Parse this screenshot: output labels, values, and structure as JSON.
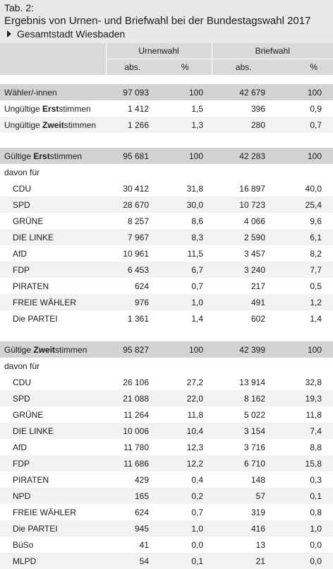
{
  "tab_number": "Tab. 2:",
  "title": "Ergebnis von Urnen- und Briefwahl bei der Bundestagswahl 2017",
  "subtitle": "Gesamtstadt Wiesbaden",
  "header": {
    "urnenwahl": "Urnenwahl",
    "briefwahl": "Briefwahl",
    "abs": "abs.",
    "pct": "%"
  },
  "summary": [
    {
      "pre": "Wähler/-innen",
      "bold": "",
      "post": "",
      "u_abs": "97 093",
      "u_pct": "100",
      "b_abs": "42 679",
      "b_pct": "100"
    },
    {
      "pre": "Ungültige ",
      "bold": "Erst",
      "post": "stimmen",
      "u_abs": "1 412",
      "u_pct": "1,5",
      "b_abs": "396",
      "b_pct": "0,9"
    },
    {
      "pre": "Ungültige ",
      "bold": "Zweit",
      "post": "stimmen",
      "u_abs": "1 266",
      "u_pct": "1,3",
      "b_abs": "280",
      "b_pct": "0,7"
    }
  ],
  "erst": {
    "head": {
      "pre": "Gültige ",
      "bold": "Erst",
      "post": "stimmen",
      "u_abs": "95 681",
      "u_pct": "100",
      "b_abs": "42 283",
      "b_pct": "100"
    },
    "davon": "davon für",
    "rows": [
      {
        "party": "CDU",
        "u_abs": "30 412",
        "u_pct": "31,8",
        "b_abs": "16 897",
        "b_pct": "40,0"
      },
      {
        "party": "SPD",
        "u_abs": "28 670",
        "u_pct": "30,0",
        "b_abs": "10 723",
        "b_pct": "25,4"
      },
      {
        "party": "GRÜNE",
        "u_abs": "8 257",
        "u_pct": "8,6",
        "b_abs": "4 066",
        "b_pct": "9,6"
      },
      {
        "party": "DIE LINKE",
        "u_abs": "7 967",
        "u_pct": "8,3",
        "b_abs": "2 590",
        "b_pct": "6,1"
      },
      {
        "party": "AfD",
        "u_abs": "10 961",
        "u_pct": "11,5",
        "b_abs": "3 457",
        "b_pct": "8,2"
      },
      {
        "party": "FDP",
        "u_abs": "6 453",
        "u_pct": "6,7",
        "b_abs": "3 240",
        "b_pct": "7,7"
      },
      {
        "party": "PIRATEN",
        "u_abs": "624",
        "u_pct": "0,7",
        "b_abs": "217",
        "b_pct": "0,5"
      },
      {
        "party": "FREIE WÄHLER",
        "u_abs": "976",
        "u_pct": "1,0",
        "b_abs": "491",
        "b_pct": "1,2"
      },
      {
        "party": "Die PARTEI",
        "u_abs": "1 361",
        "u_pct": "1,4",
        "b_abs": "602",
        "b_pct": "1,4"
      }
    ]
  },
  "zweit": {
    "head": {
      "pre": "Gültige ",
      "bold": "Zweit",
      "post": "stimmen",
      "u_abs": "95 827",
      "u_pct": "100",
      "b_abs": "42 399",
      "b_pct": "100"
    },
    "davon": "davon für",
    "rows": [
      {
        "party": "CDU",
        "u_abs": "26 106",
        "u_pct": "27,2",
        "b_abs": "13 914",
        "b_pct": "32,8"
      },
      {
        "party": "SPD",
        "u_abs": "21 088",
        "u_pct": "22,0",
        "b_abs": "8 162",
        "b_pct": "19,3"
      },
      {
        "party": "GRÜNE",
        "u_abs": "11 264",
        "u_pct": "11,8",
        "b_abs": "5 022",
        "b_pct": "11,8"
      },
      {
        "party": "DIE LINKE",
        "u_abs": "10 006",
        "u_pct": "10,4",
        "b_abs": "3 154",
        "b_pct": "7,4"
      },
      {
        "party": "AfD",
        "u_abs": "11 780",
        "u_pct": "12,3",
        "b_abs": "3 716",
        "b_pct": "8,8"
      },
      {
        "party": "FDP",
        "u_abs": "11 686",
        "u_pct": "12,2",
        "b_abs": "6 710",
        "b_pct": "15,8"
      },
      {
        "party": "PIRATEN",
        "u_abs": "429",
        "u_pct": "0,4",
        "b_abs": "148",
        "b_pct": "0,3"
      },
      {
        "party": "NPD",
        "u_abs": "165",
        "u_pct": "0,2",
        "b_abs": "57",
        "b_pct": "0,1"
      },
      {
        "party": "FREIE WÄHLER",
        "u_abs": "624",
        "u_pct": "0,7",
        "b_abs": "319",
        "b_pct": "0,8"
      },
      {
        "party": "Die PARTEI",
        "u_abs": "945",
        "u_pct": "1,0",
        "b_abs": "416",
        "b_pct": "1,0"
      },
      {
        "party": "BüSo",
        "u_abs": "41",
        "u_pct": "0,0",
        "b_abs": "13",
        "b_pct": "0,0"
      },
      {
        "party": "MLPD",
        "u_abs": "54",
        "u_pct": "0,1",
        "b_abs": "21",
        "b_pct": "0,0"
      }
    ]
  }
}
